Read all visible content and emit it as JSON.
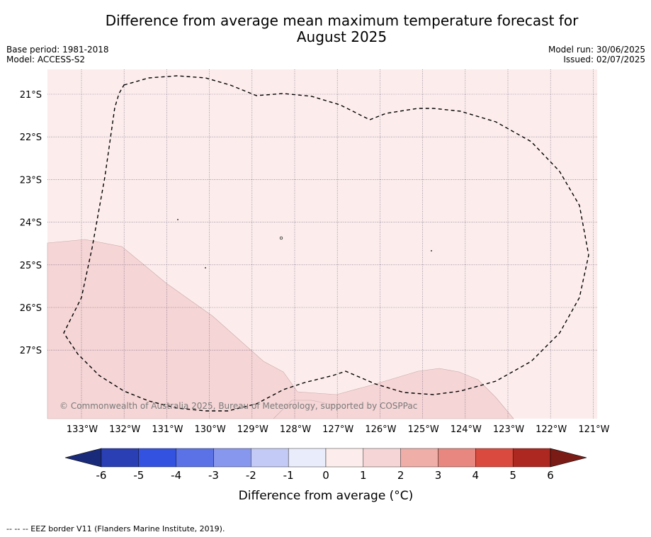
{
  "title_line1": "Difference from average mean maximum temperature forecast for",
  "title_line2": "August 2025",
  "base_period": "Base period: 1981-2018",
  "model": "Model: ACCESS-S2",
  "model_run": "Model run: 30/06/2025",
  "issued": "Issued: 02/07/2025",
  "lat_labels": [
    "21°S",
    "22°S",
    "23°S",
    "24°S",
    "25°S",
    "26°S",
    "27°S"
  ],
  "lon_labels": [
    "133°W",
    "132°W",
    "131°W",
    "130°W",
    "129°W",
    "128°W",
    "127°W",
    "126°W",
    "125°W",
    "124°W",
    "123°W",
    "122°W",
    "121°W"
  ],
  "copyright": "© Commonwealth of Australia 2025, Bureau of Meteorology, supported by COSPPac",
  "colorbar": {
    "label": "Difference from average (°C)",
    "ticks": [
      "-6",
      "-5",
      "-4",
      "-3",
      "-2",
      "-1",
      "0",
      "1",
      "2",
      "3",
      "4",
      "5",
      "6"
    ],
    "colors": [
      "#1a2a7a",
      "#2a3fb4",
      "#3452e0",
      "#5a72e6",
      "#8797ee",
      "#c3caf6",
      "#e9ecfb",
      "#fcedec",
      "#f5d5d5",
      "#efaea8",
      "#e8877f",
      "#db4a3e",
      "#ad2820",
      "#7a1b16"
    ]
  },
  "map": {
    "base_color": "#fcedec",
    "zone_color": "#f5d5d5"
  },
  "footnote": "--  --  -- EEZ border V11 (Flanders Marine Institute, 2019)."
}
